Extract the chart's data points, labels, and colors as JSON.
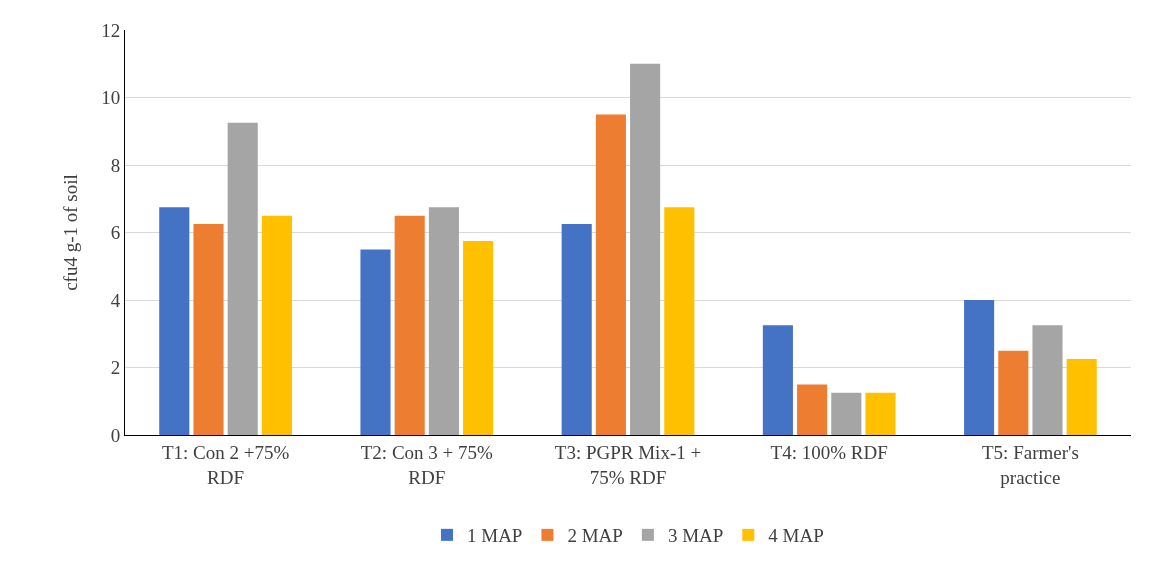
{
  "chart_data": {
    "type": "bar",
    "ylabel": "cfu4 g-1 of soil",
    "categories": [
      "T1: Con 2 +75% RDF",
      "T2: Con 3 + 75% RDF",
      "T3: PGPR Mix-1 + 75% RDF",
      "T4: 100% RDF",
      "T5: Farmer's practice"
    ],
    "series": [
      {
        "name": "1 MAP",
        "color": "#4472c4",
        "values": [
          6.75,
          5.5,
          6.25,
          3.25,
          4
        ]
      },
      {
        "name": "2 MAP",
        "color": "#ed7d31",
        "values": [
          6.25,
          6.5,
          9.5,
          1.5,
          2.5
        ]
      },
      {
        "name": "3 MAP",
        "color": "#a5a5a5",
        "values": [
          9.25,
          6.75,
          11,
          1.25,
          3.25
        ]
      },
      {
        "name": "4 MAP",
        "color": "#ffc000",
        "values": [
          6.5,
          5.75,
          6.75,
          1.25,
          2.25
        ]
      }
    ],
    "ylim": [
      0,
      12
    ],
    "yticks": [
      0,
      2,
      4,
      6,
      8,
      10,
      12
    ],
    "grid": "y",
    "legend": "bottom"
  }
}
